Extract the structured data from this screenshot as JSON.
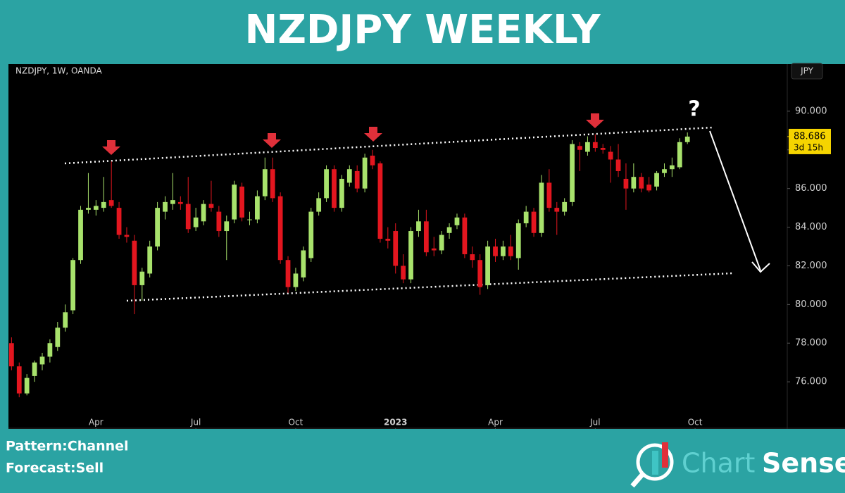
{
  "chart_data": {
    "type": "candlestick",
    "title": "NZDJPY WEEKLY",
    "symbol": "NZDJPY, 1W, OANDA",
    "currency": "JPY",
    "countdown": "3d 15h",
    "annotation": "?",
    "up_color": "#a8e26c",
    "down_color": "#e3161f",
    "grid": false,
    "x": [
      0,
      1,
      2,
      3,
      4,
      5,
      6,
      7,
      8,
      9,
      10,
      11,
      12,
      13,
      14,
      15,
      16,
      17,
      18,
      19,
      20,
      21,
      22,
      23,
      24,
      25,
      26,
      27,
      28,
      29,
      30,
      31,
      32,
      33,
      34,
      35,
      36,
      37,
      38,
      39,
      40,
      41,
      42,
      43,
      44,
      45,
      46,
      47,
      48,
      49,
      50,
      51,
      52,
      53,
      54,
      55,
      56,
      57,
      58,
      59,
      60,
      61,
      62,
      63,
      64,
      65,
      66,
      67,
      68,
      69,
      70,
      71,
      72,
      73,
      74,
      75,
      76,
      77,
      78,
      79,
      80,
      81,
      82,
      83,
      84,
      85,
      86,
      87,
      88
    ],
    "open": [
      78.0,
      76.8,
      75.4,
      76.3,
      76.9,
      77.3,
      77.8,
      78.8,
      79.7,
      82.3,
      84.9,
      84.9,
      85.0,
      85.4,
      85.0,
      83.6,
      83.3,
      81.0,
      81.6,
      83.0,
      84.8,
      85.2,
      85.3,
      85.2,
      84.0,
      84.3,
      85.2,
      84.8,
      83.8,
      84.4,
      86.1,
      84.4,
      84.4,
      85.6,
      87.0,
      85.6,
      82.3,
      80.9,
      81.4,
      82.4,
      84.8,
      85.5,
      87.0,
      85.0,
      86.3,
      86.9,
      86.0,
      87.7,
      87.3,
      83.4,
      83.8,
      82.0,
      81.3,
      83.8,
      84.3,
      82.9,
      82.8,
      83.7,
      84.1,
      84.5,
      82.6,
      82.3,
      81.0,
      83.0,
      82.5,
      83.0,
      82.4,
      84.2,
      84.8,
      83.7,
      86.3,
      85.0,
      84.8,
      85.3,
      88.2,
      87.9,
      88.4,
      88.1,
      87.9,
      87.5,
      86.5,
      86.0,
      86.6,
      86.2,
      86.1,
      86.8,
      87.0,
      87.1,
      88.4
    ],
    "high": [
      78.3,
      77.0,
      76.4,
      77.1,
      77.5,
      78.2,
      79.1,
      80.0,
      82.4,
      85.1,
      86.8,
      85.4,
      86.6,
      87.4,
      85.3,
      84.0,
      83.6,
      81.9,
      83.3,
      85.3,
      85.6,
      86.8,
      85.6,
      86.6,
      85.0,
      85.4,
      86.4,
      85.1,
      84.6,
      86.4,
      86.3,
      84.8,
      85.9,
      87.6,
      87.6,
      85.8,
      82.5,
      81.9,
      83.0,
      85.0,
      85.8,
      87.2,
      87.2,
      86.7,
      87.2,
      87.2,
      87.8,
      88.0,
      87.4,
      84.0,
      84.2,
      82.6,
      84.0,
      84.9,
      84.9,
      83.5,
      83.8,
      84.2,
      84.7,
      84.7,
      83.0,
      82.6,
      83.3,
      83.4,
      83.3,
      83.6,
      84.4,
      85.1,
      85.0,
      86.7,
      87.0,
      85.3,
      85.5,
      88.5,
      88.4,
      88.7,
      88.8,
      88.3,
      88.2,
      88.3,
      87.3,
      87.3,
      86.8,
      86.6,
      86.9,
      87.3,
      87.6,
      88.6,
      88.9
    ],
    "low": [
      76.6,
      75.2,
      75.3,
      76.0,
      76.6,
      77.0,
      77.6,
      78.6,
      79.5,
      82.1,
      84.7,
      84.6,
      84.8,
      85.0,
      83.4,
      83.2,
      79.5,
      80.2,
      81.4,
      82.8,
      84.4,
      84.9,
      84.9,
      83.7,
      83.8,
      84.1,
      84.8,
      83.5,
      82.3,
      84.2,
      84.3,
      84.1,
      84.2,
      85.4,
      85.3,
      82.1,
      80.6,
      80.7,
      81.2,
      82.2,
      84.6,
      85.3,
      84.8,
      84.8,
      86.1,
      85.8,
      85.8,
      87.0,
      83.2,
      82.9,
      81.6,
      81.1,
      81.1,
      83.5,
      82.5,
      82.5,
      82.6,
      83.4,
      83.9,
      82.4,
      81.9,
      80.5,
      80.8,
      82.2,
      82.3,
      82.3,
      81.8,
      84.0,
      83.5,
      83.5,
      84.8,
      83.6,
      84.6,
      85.1,
      86.9,
      87.7,
      87.9,
      87.8,
      86.3,
      86.6,
      84.9,
      85.8,
      85.8,
      85.8,
      85.9,
      86.6,
      86.6,
      87.0,
      88.3
    ],
    "close": [
      76.8,
      75.4,
      76.2,
      77.0,
      77.3,
      78.0,
      78.8,
      79.6,
      82.3,
      84.9,
      85.0,
      85.1,
      85.3,
      85.1,
      83.6,
      83.5,
      81.0,
      81.7,
      83.0,
      85.0,
      85.3,
      85.4,
      85.2,
      83.9,
      84.5,
      85.2,
      85.0,
      83.8,
      84.3,
      86.2,
      84.5,
      84.4,
      85.6,
      87.0,
      85.5,
      82.3,
      80.9,
      81.6,
      82.8,
      84.8,
      85.5,
      87.0,
      85.0,
      86.5,
      87.0,
      86.0,
      87.6,
      87.2,
      83.4,
      83.3,
      82.0,
      81.3,
      83.8,
      84.3,
      82.7,
      82.8,
      83.6,
      84.0,
      84.5,
      82.6,
      82.3,
      80.9,
      83.0,
      82.5,
      83.0,
      82.5,
      84.2,
      84.8,
      83.7,
      86.3,
      85.0,
      84.8,
      85.3,
      88.3,
      88.0,
      88.4,
      88.1,
      88.0,
      87.5,
      86.9,
      86.0,
      86.6,
      86.0,
      85.9,
      86.8,
      87.0,
      87.2,
      88.4,
      88.686
    ],
    "xlim": [
      -0.4,
      101
    ],
    "xticks": [
      {
        "value": 11,
        "label": "Apr"
      },
      {
        "value": 24,
        "label": "Jul"
      },
      {
        "value": 37,
        "label": "Oct"
      },
      {
        "value": 50,
        "label": "2023"
      },
      {
        "value": 63,
        "label": "Apr"
      },
      {
        "value": 76,
        "label": "Jul"
      },
      {
        "value": 89,
        "label": "Oct"
      }
    ],
    "ylim": [
      73.6,
      92.4
    ],
    "yticks": [
      {
        "value": 76,
        "label": "76.000"
      },
      {
        "value": 78,
        "label": "78.000"
      },
      {
        "value": 80,
        "label": "80.000"
      },
      {
        "value": 82,
        "label": "82.000"
      },
      {
        "value": 84,
        "label": "84.000"
      },
      {
        "value": 86,
        "label": "86.000"
      },
      {
        "value": 88,
        "label": "88.000"
      },
      {
        "value": 90,
        "label": "90.000"
      }
    ]
  },
  "footer": {
    "pattern": "Pattern:Channel",
    "forecast": "Forecast:Sell",
    "logo_a": "Chart",
    "logo_b": "Sense"
  }
}
